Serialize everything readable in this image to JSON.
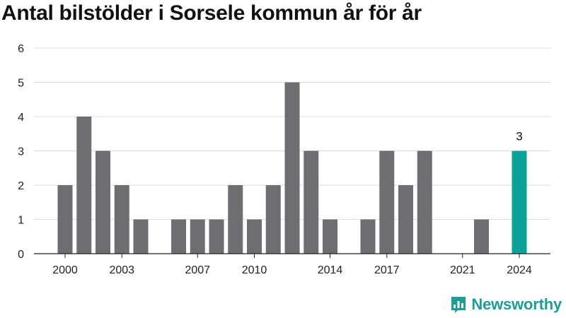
{
  "title": "Antal bilstölder i Sorsele kommun år för år",
  "brand": {
    "name": "Newsworthy",
    "icon": "newsworthy-logo-icon",
    "color": "#1e9c96"
  },
  "colors": {
    "bar": "#6e6d72",
    "highlight": "#0aa39a",
    "grid": "#dddddd",
    "axis": "#222222"
  },
  "chart_data": {
    "type": "bar",
    "title": "Antal bilstölder i Sorsele kommun år för år",
    "xlabel": "",
    "ylabel": "",
    "ylim": [
      0,
      6
    ],
    "yticks": [
      0,
      1,
      2,
      3,
      4,
      5,
      6
    ],
    "grid": true,
    "categories": [
      2000,
      2001,
      2002,
      2003,
      2004,
      2005,
      2006,
      2007,
      2008,
      2009,
      2010,
      2011,
      2012,
      2013,
      2014,
      2015,
      2016,
      2017,
      2018,
      2019,
      2020,
      2021,
      2022,
      2023,
      2024
    ],
    "values": [
      2,
      4,
      3,
      2,
      1,
      0,
      1,
      1,
      1,
      2,
      1,
      2,
      5,
      3,
      1,
      0,
      1,
      3,
      2,
      3,
      0,
      0,
      1,
      0,
      3
    ],
    "xtick_labels": [
      2000,
      2003,
      2007,
      2010,
      2014,
      2017,
      2021,
      2024
    ],
    "highlight": {
      "category": 2024,
      "label": "3"
    }
  }
}
